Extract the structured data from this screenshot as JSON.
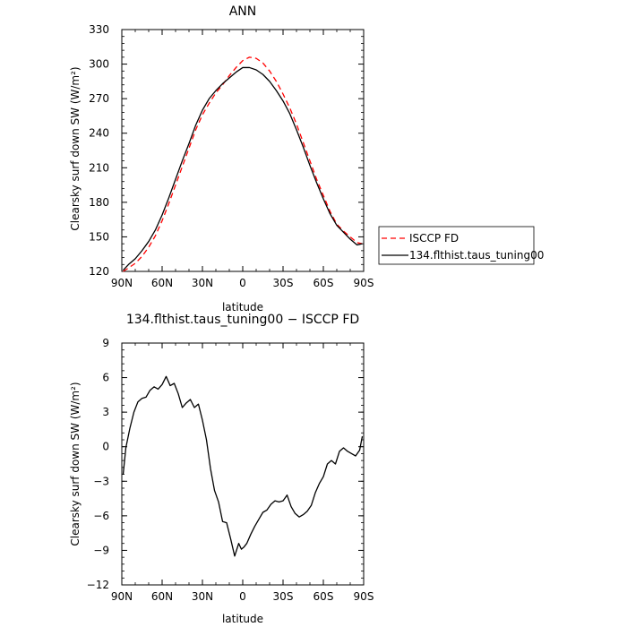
{
  "chart_data": [
    {
      "type": "line",
      "title": "ANN",
      "xlabel": "latitude",
      "ylabel": "Clearsky surf down SW (W/m²)",
      "xlim": [
        90,
        -90
      ],
      "ylim": [
        120,
        330
      ],
      "xticks": [
        90,
        60,
        30,
        0,
        -30,
        -60,
        -90
      ],
      "xtick_labels": [
        "90N",
        "60N",
        "30N",
        "0",
        "30S",
        "60S",
        "90S"
      ],
      "yticks": [
        120,
        150,
        180,
        210,
        240,
        270,
        300,
        330
      ],
      "ytick_labels": [
        "120",
        "150",
        "180",
        "210",
        "240",
        "270",
        "300",
        "330"
      ],
      "legend_position": "outside-right",
      "series": [
        {
          "name": "ISCCP FD",
          "color": "#ff0000",
          "dash": "dashed",
          "x": [
            89,
            85,
            80,
            75,
            70,
            65,
            60,
            55,
            50,
            45,
            40,
            35,
            30,
            25,
            20,
            15,
            10,
            5,
            0,
            -5,
            -10,
            -15,
            -20,
            -25,
            -30,
            -35,
            -40,
            -45,
            -50,
            -55,
            -60,
            -65,
            -70,
            -75,
            -80,
            -85,
            -89
          ],
          "y": [
            120,
            123,
            127,
            133,
            141,
            151,
            164,
            179,
            195,
            211,
            227,
            243,
            256,
            266,
            275,
            282,
            290,
            297,
            303,
            306,
            305,
            301,
            294,
            285,
            274,
            262,
            248,
            232,
            216,
            200,
            186,
            172,
            161,
            155,
            150,
            145,
            144
          ]
        },
        {
          "name": "134.flthist.taus_tuning00",
          "color": "#000000",
          "dash": "solid",
          "x": [
            89,
            85,
            80,
            75,
            70,
            65,
            60,
            55,
            50,
            45,
            40,
            35,
            30,
            25,
            20,
            15,
            10,
            5,
            0,
            -5,
            -10,
            -15,
            -20,
            -25,
            -30,
            -35,
            -40,
            -45,
            -50,
            -55,
            -60,
            -65,
            -70,
            -75,
            -80,
            -85,
            -89
          ],
          "y": [
            121,
            126,
            131,
            138,
            146,
            156,
            169,
            184,
            200,
            216,
            231,
            247,
            260,
            270,
            277,
            283,
            288,
            293,
            297,
            297,
            295,
            291,
            285,
            277,
            268,
            257,
            243,
            228,
            212,
            197,
            183,
            170,
            160,
            154,
            148,
            143,
            144
          ]
        }
      ]
    },
    {
      "type": "line",
      "title": "134.flthist.taus_tuning00 − ISCCP FD",
      "xlabel": "latitude",
      "ylabel": "Clearsky surf down SW (W/m²)",
      "xlim": [
        90,
        -90
      ],
      "ylim": [
        -12,
        9
      ],
      "xticks": [
        90,
        60,
        30,
        0,
        -30,
        -60,
        -90
      ],
      "xtick_labels": [
        "90N",
        "60N",
        "30N",
        "0",
        "30S",
        "60S",
        "90S"
      ],
      "yticks": [
        -12,
        -9,
        -6,
        -3,
        0,
        3,
        6,
        9
      ],
      "ytick_labels": [
        "−12",
        "−9",
        "−6",
        "−3",
        "0",
        "3",
        "6",
        "9"
      ],
      "series": [
        {
          "color": "#000000",
          "dash": "solid",
          "x": [
            89,
            87,
            84,
            81,
            78,
            75,
            72,
            69,
            66,
            63,
            60,
            57,
            54,
            51,
            48,
            45,
            42,
            39,
            36,
            33,
            30,
            27,
            24,
            21,
            18,
            15,
            12,
            9,
            6,
            3,
            1,
            -1,
            -3,
            -6,
            -9,
            -12,
            -15,
            -18,
            -21,
            -24,
            -27,
            -30,
            -33,
            -36,
            -39,
            -42,
            -45,
            -48,
            -51,
            -54,
            -57,
            -60,
            -63,
            -66,
            -69,
            -72,
            -75,
            -78,
            -81,
            -84,
            -87,
            -89
          ],
          "y": [
            -2.4,
            -0.1,
            1.6,
            3.0,
            3.9,
            4.2,
            4.3,
            4.9,
            5.2,
            5.0,
            5.4,
            6.1,
            5.3,
            5.5,
            4.6,
            3.4,
            3.8,
            4.1,
            3.4,
            3.7,
            2.3,
            0.6,
            -1.9,
            -3.8,
            -4.8,
            -6.5,
            -6.6,
            -8.0,
            -9.5,
            -8.4,
            -8.9,
            -8.7,
            -8.4,
            -7.6,
            -6.9,
            -6.3,
            -5.7,
            -5.5,
            -5.0,
            -4.7,
            -4.8,
            -4.7,
            -4.2,
            -5.2,
            -5.8,
            -6.1,
            -5.9,
            -5.6,
            -5.1,
            -4.0,
            -3.2,
            -2.6,
            -1.5,
            -1.2,
            -1.5,
            -0.4,
            -0.1,
            -0.4,
            -0.6,
            -0.8,
            -0.3,
            0.9
          ]
        }
      ]
    }
  ]
}
